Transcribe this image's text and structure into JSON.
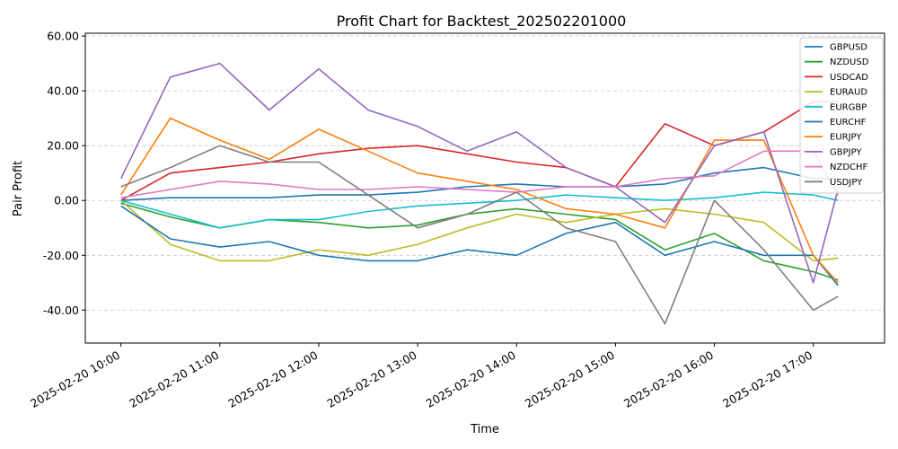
{
  "chart_data": {
    "type": "line",
    "title": "Profit Chart for Backtest_202502201000",
    "xlabel": "Time",
    "ylabel": "Pair Profit",
    "x_ticks": [
      "2025-02-20 10:00",
      "2025-02-20 11:00",
      "2025-02-20 12:00",
      "2025-02-20 13:00",
      "2025-02-20 14:00",
      "2025-02-20 15:00",
      "2025-02-20 16:00",
      "2025-02-20 17:00"
    ],
    "x_hours": [
      0,
      1,
      2,
      3,
      4,
      5,
      6,
      7
    ],
    "xlim_hours": [
      -0.36,
      7.72
    ],
    "ylim": [
      -52,
      61
    ],
    "y_ticks": [
      "-40.00",
      "-20.00",
      "0.00",
      "20.00",
      "40.00",
      "60.00"
    ],
    "y_tick_values": [
      -40,
      -20,
      0,
      20,
      40,
      60
    ],
    "grid": "horizontal dashed",
    "legend_position": "top-right",
    "series": [
      {
        "name": "GBPUSD",
        "color": "#1f77b4",
        "x": [
          0,
          0.5,
          1,
          1.5,
          2,
          2.5,
          3,
          3.5,
          4,
          4.5,
          5,
          5.5,
          6,
          6.5,
          7,
          7.25
        ],
        "values": [
          0,
          1,
          1,
          1,
          2,
          2,
          3,
          5,
          6,
          5,
          5,
          6,
          10,
          12,
          8,
          8
        ]
      },
      {
        "name": "NZDUSD",
        "color": "#2ca02c",
        "x": [
          0,
          0.5,
          1,
          1.5,
          2,
          2.5,
          3,
          3.5,
          4,
          4.5,
          5,
          5.5,
          6,
          6.5,
          7,
          7.25
        ],
        "values": [
          -1,
          -6,
          -10,
          -7,
          -8,
          -10,
          -9,
          -5,
          -3,
          -5,
          -7,
          -18,
          -12,
          -22,
          -26,
          -29
        ]
      },
      {
        "name": "USDCAD",
        "color": "#d62728",
        "x": [
          0,
          0.5,
          1,
          1.5,
          2,
          2.5,
          3,
          3.5,
          4,
          4.5,
          5,
          5.5,
          6,
          6.5,
          7,
          7.25
        ],
        "values": [
          0,
          10,
          12,
          14,
          17,
          19,
          20,
          17,
          14,
          12,
          5,
          28,
          20,
          25,
          36,
          36
        ]
      },
      {
        "name": "EURAUD",
        "color": "#bcbd22",
        "x": [
          0,
          0.5,
          1,
          1.5,
          2,
          2.5,
          3,
          3.5,
          4,
          4.5,
          5,
          5.5,
          6,
          6.5,
          7,
          7.25
        ],
        "values": [
          0,
          -16,
          -22,
          -22,
          -18,
          -20,
          -16,
          -10,
          -5,
          -8,
          -5,
          -3,
          -5,
          -8,
          -22,
          -21
        ]
      },
      {
        "name": "EURGBP",
        "color": "#17becf",
        "x": [
          0,
          0.5,
          1,
          1.5,
          2,
          2.5,
          3,
          3.5,
          4,
          4.5,
          5,
          5.5,
          6,
          6.5,
          7,
          7.25
        ],
        "values": [
          0,
          -5,
          -10,
          -7,
          -7,
          -4,
          -2,
          -1,
          0,
          2,
          1,
          0,
          1,
          3,
          2,
          0
        ]
      },
      {
        "name": "EURCHF",
        "color": "#1f77b4",
        "x": [
          0,
          0.5,
          1,
          1.5,
          2,
          2.5,
          3,
          3.5,
          4,
          4.5,
          5,
          5.5,
          6,
          6.5,
          7,
          7.25
        ],
        "values": [
          -2,
          -14,
          -17,
          -15,
          -20,
          -22,
          -22,
          -18,
          -20,
          -12,
          -8,
          -20,
          -15,
          -20,
          -20,
          -31
        ]
      },
      {
        "name": "EURJPY",
        "color": "#ff7f0e",
        "x": [
          0,
          0.5,
          1,
          1.5,
          2,
          2.5,
          3,
          3.5,
          4,
          4.5,
          5,
          5.5,
          6,
          6.5,
          7,
          7.25
        ],
        "values": [
          2,
          30,
          22,
          15,
          26,
          18,
          10,
          7,
          4,
          -3,
          -5,
          -10,
          22,
          22,
          -20,
          -30
        ]
      },
      {
        "name": "GBPJPY",
        "color": "#9467bd",
        "x": [
          0,
          0.5,
          1,
          1.5,
          2,
          2.5,
          3,
          3.5,
          4,
          4.5,
          5,
          5.5,
          6,
          6.5,
          7,
          7.25
        ],
        "values": [
          8,
          45,
          50,
          33,
          48,
          33,
          27,
          18,
          25,
          12,
          5,
          -8,
          20,
          25,
          -30,
          4
        ]
      },
      {
        "name": "NZDCHF",
        "color": "#e377c2",
        "x": [
          0,
          0.5,
          1,
          1.5,
          2,
          2.5,
          3,
          3.5,
          4,
          4.5,
          5,
          5.5,
          6,
          6.5,
          7,
          7.25
        ],
        "values": [
          1,
          4,
          7,
          6,
          4,
          4,
          5,
          4,
          3,
          5,
          5,
          8,
          9,
          18,
          18,
          2
        ]
      },
      {
        "name": "USDJPY",
        "color": "#7f7f7f",
        "x": [
          0,
          0.5,
          1,
          1.5,
          2,
          2.5,
          3,
          3.5,
          4,
          4.5,
          5,
          5.5,
          6,
          6.5,
          7,
          7.25
        ],
        "values": [
          5,
          12,
          20,
          14,
          14,
          2,
          -10,
          -5,
          3,
          -10,
          -15,
          -45,
          0,
          -18,
          -40,
          -35
        ]
      }
    ]
  }
}
